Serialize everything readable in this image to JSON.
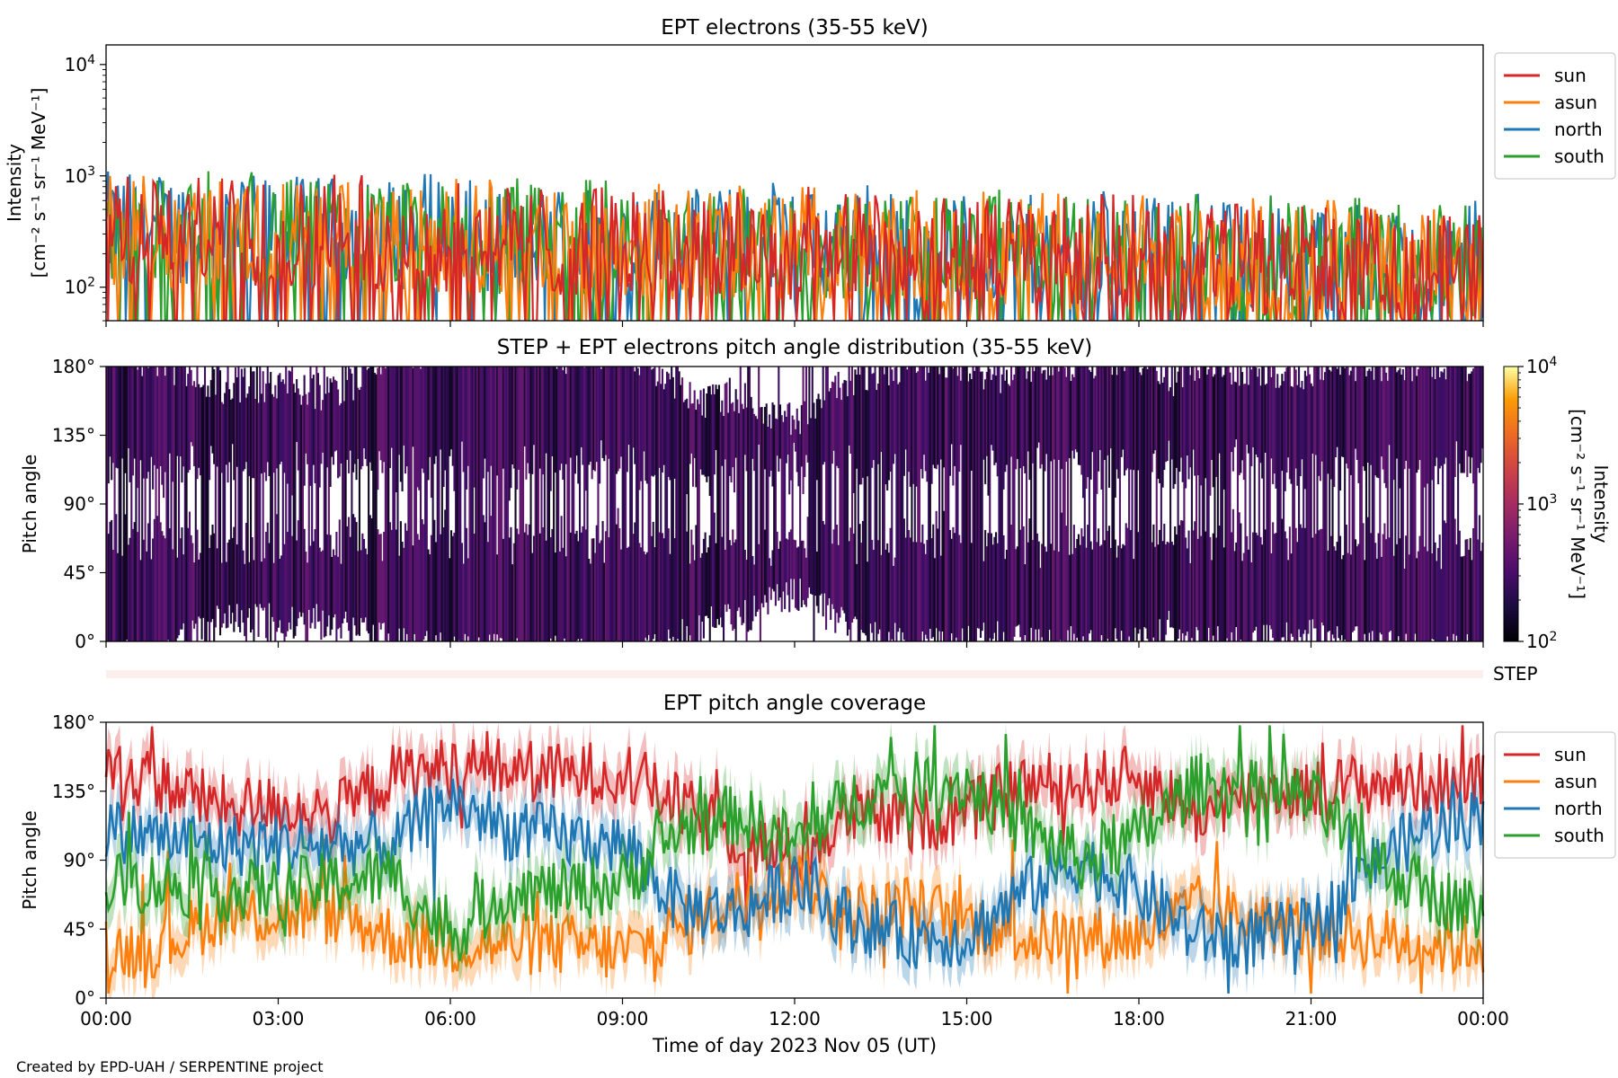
{
  "figure": {
    "xaxis": {
      "label": "Time of day 2023 Nov 05 (UT)",
      "range_hours": [
        0,
        24
      ],
      "tick_hours": [
        0,
        3,
        6,
        9,
        12,
        15,
        18,
        21,
        24
      ],
      "tick_labels": [
        "00:00",
        "03:00",
        "06:00",
        "09:00",
        "12:00",
        "15:00",
        "18:00",
        "21:00",
        "00:00"
      ]
    },
    "footer": "Created by EPD-UAH / SERPENTINE project"
  },
  "chart_data": [
    {
      "id": "intensity",
      "type": "line",
      "title": "EPT electrons (35-55 keV)",
      "ylabel": "Intensity",
      "ylabel_units": "[cm⁻² s⁻¹ sr⁻¹ MeV⁻¹]",
      "yscale": "log",
      "ylim": [
        50,
        15000
      ],
      "yticks": [
        {
          "value": 100,
          "base": "10",
          "exp": "2"
        },
        {
          "value": 1000,
          "base": "10",
          "exp": "3"
        },
        {
          "value": 10000,
          "base": "10",
          "exp": "4"
        }
      ],
      "legend": {
        "placement": "right-outside-top",
        "entries": [
          "sun",
          "asun",
          "north",
          "south"
        ]
      },
      "series": [
        {
          "name": "north",
          "color": "#1f77b4",
          "values_summary": {
            "start_median": 350,
            "end_median": 170,
            "min": 50,
            "max": 1300
          }
        },
        {
          "name": "south",
          "color": "#2ca02c",
          "values_summary": {
            "start_median": 330,
            "end_median": 170,
            "min": 50,
            "max": 1100
          }
        },
        {
          "name": "asun",
          "color": "#ff7f0e",
          "values_summary": {
            "start_median": 320,
            "end_median": 160,
            "min": 50,
            "max": 1000
          }
        },
        {
          "name": "sun",
          "color": "#d62728",
          "values_summary": {
            "start_median": 330,
            "end_median": 160,
            "min": 50,
            "max": 1050
          }
        }
      ]
    },
    {
      "id": "pad",
      "type": "heatmap",
      "title": "STEP + EPT electrons pitch angle distribution (35-55 keV)",
      "ylabel": "Pitch angle",
      "ylim": [
        0,
        180
      ],
      "yticks": [
        "0°",
        "45°",
        "90°",
        "135°",
        "180°"
      ],
      "colorbar": {
        "label": "Intensity",
        "units": "[cm⁻² s⁻¹ sr⁻¹ MeV⁻¹]",
        "scale": "log",
        "range": [
          100,
          10000
        ],
        "colormap": "inferno",
        "ticks": [
          {
            "value": 100,
            "base": "10",
            "exp": "2"
          },
          {
            "value": 1000,
            "base": "10",
            "exp": "3"
          },
          {
            "value": 10000,
            "base": "10",
            "exp": "4"
          }
        ]
      },
      "typical_intensity": 250
    },
    {
      "id": "step",
      "type": "bar",
      "label": "STEP",
      "color": "#fdf0ec"
    },
    {
      "id": "coverage",
      "type": "line",
      "title": "EPT pitch angle coverage",
      "ylabel": "Pitch angle",
      "ylim": [
        0,
        180
      ],
      "yticks": [
        "0°",
        "45°",
        "90°",
        "135°",
        "180°"
      ],
      "legend": {
        "placement": "right-outside-top",
        "entries": [
          "sun",
          "asun",
          "north",
          "south"
        ]
      },
      "x_hours": [
        0,
        1,
        2,
        3,
        4,
        5,
        6,
        7,
        8,
        9,
        10,
        11,
        12,
        13,
        14,
        15,
        16,
        17,
        18,
        19,
        20,
        21,
        22,
        23,
        24
      ],
      "series": [
        {
          "name": "sun",
          "color": "#d62728",
          "values": [
            150,
            140,
            125,
            125,
            120,
            145,
            150,
            150,
            145,
            150,
            125,
            105,
            90,
            120,
            115,
            120,
            140,
            140,
            145,
            120,
            135,
            135,
            140,
            140,
            140
          ]
        },
        {
          "name": "asun",
          "color": "#ff7f0e",
          "values": [
            30,
            35,
            55,
            55,
            55,
            40,
            35,
            35,
            35,
            30,
            45,
            65,
            80,
            55,
            60,
            50,
            40,
            40,
            40,
            60,
            50,
            45,
            40,
            35,
            35
          ]
        },
        {
          "name": "north",
          "color": "#1f77b4",
          "values": [
            110,
            105,
            100,
            100,
            100,
            100,
            130,
            110,
            105,
            100,
            60,
            55,
            75,
            50,
            40,
            40,
            70,
            90,
            70,
            40,
            40,
            45,
            85,
            110,
            120
          ]
        },
        {
          "name": "south",
          "color": "#2ca02c",
          "values": [
            75,
            75,
            70,
            70,
            75,
            80,
            40,
            70,
            70,
            75,
            110,
            120,
            100,
            130,
            140,
            140,
            110,
            90,
            105,
            140,
            135,
            130,
            90,
            70,
            55
          ]
        }
      ]
    }
  ]
}
